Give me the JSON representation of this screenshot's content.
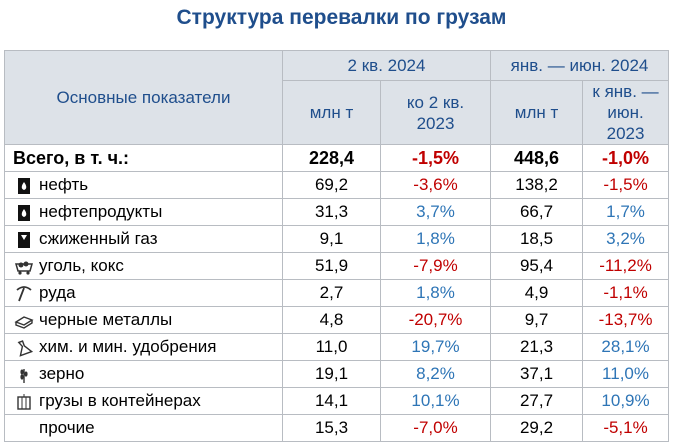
{
  "title": "Структура перевалки по грузам",
  "header": {
    "indicators": "Основные показатели",
    "period1": "2 кв. 2024",
    "period2": "янв. — июн. 2024",
    "unit1": "млн т",
    "change1": "ко 2 кв. 2023",
    "unit2": "млн т",
    "change2": "к янв. — июн. 2023"
  },
  "rows": [
    {
      "label": "Всего, в т. ч.:",
      "icon": "",
      "q2": "228,4",
      "q2_change": "-1,5%",
      "h1": "448,6",
      "h1_change": "-1,0%"
    },
    {
      "label": "нефть",
      "icon": "oil-drop-icon",
      "q2": "69,2",
      "q2_change": "-3,6%",
      "h1": "138,2",
      "h1_change": "-1,5%"
    },
    {
      "label": "нефтепродукты",
      "icon": "oil-drop-icon",
      "q2": "31,3",
      "q2_change": "3,7%",
      "h1": "66,7",
      "h1_change": "1,7%"
    },
    {
      "label": "сжиженный газ",
      "icon": "gas-icon",
      "q2": "9,1",
      "q2_change": "1,8%",
      "h1": "18,5",
      "h1_change": "3,2%"
    },
    {
      "label": "уголь, кокс",
      "icon": "coal-cart-icon",
      "q2": "51,9",
      "q2_change": "-7,9%",
      "h1": "95,4",
      "h1_change": "-11,2%"
    },
    {
      "label": "руда",
      "icon": "pickaxe-icon",
      "q2": "2,7",
      "q2_change": "1,8%",
      "h1": "4,9",
      "h1_change": "-1,1%"
    },
    {
      "label": "черные металлы",
      "icon": "metal-beam-icon",
      "q2": "4,8",
      "q2_change": "-20,7%",
      "h1": "9,7",
      "h1_change": "-13,7%"
    },
    {
      "label": "хим. и мин. удобрения",
      "icon": "flask-icon",
      "q2": "11,0",
      "q2_change": "19,7%",
      "h1": "21,3",
      "h1_change": "28,1%"
    },
    {
      "label": "зерно",
      "icon": "wheat-icon",
      "q2": "19,1",
      "q2_change": "8,2%",
      "h1": "37,1",
      "h1_change": "11,0%"
    },
    {
      "label": "грузы в контейнерах",
      "icon": "container-icon",
      "q2": "14,1",
      "q2_change": "10,1%",
      "h1": "27,7",
      "h1_change": "10,9%"
    },
    {
      "label": "прочие",
      "icon": "",
      "q2": "15,3",
      "q2_change": "-7,0%",
      "h1": "29,2",
      "h1_change": "-5,1%"
    }
  ],
  "colors": {
    "negative": "#c00000",
    "positive": "#2e75b6",
    "header_text": "#1f4e8c",
    "header_bg": "#dde2e8"
  }
}
